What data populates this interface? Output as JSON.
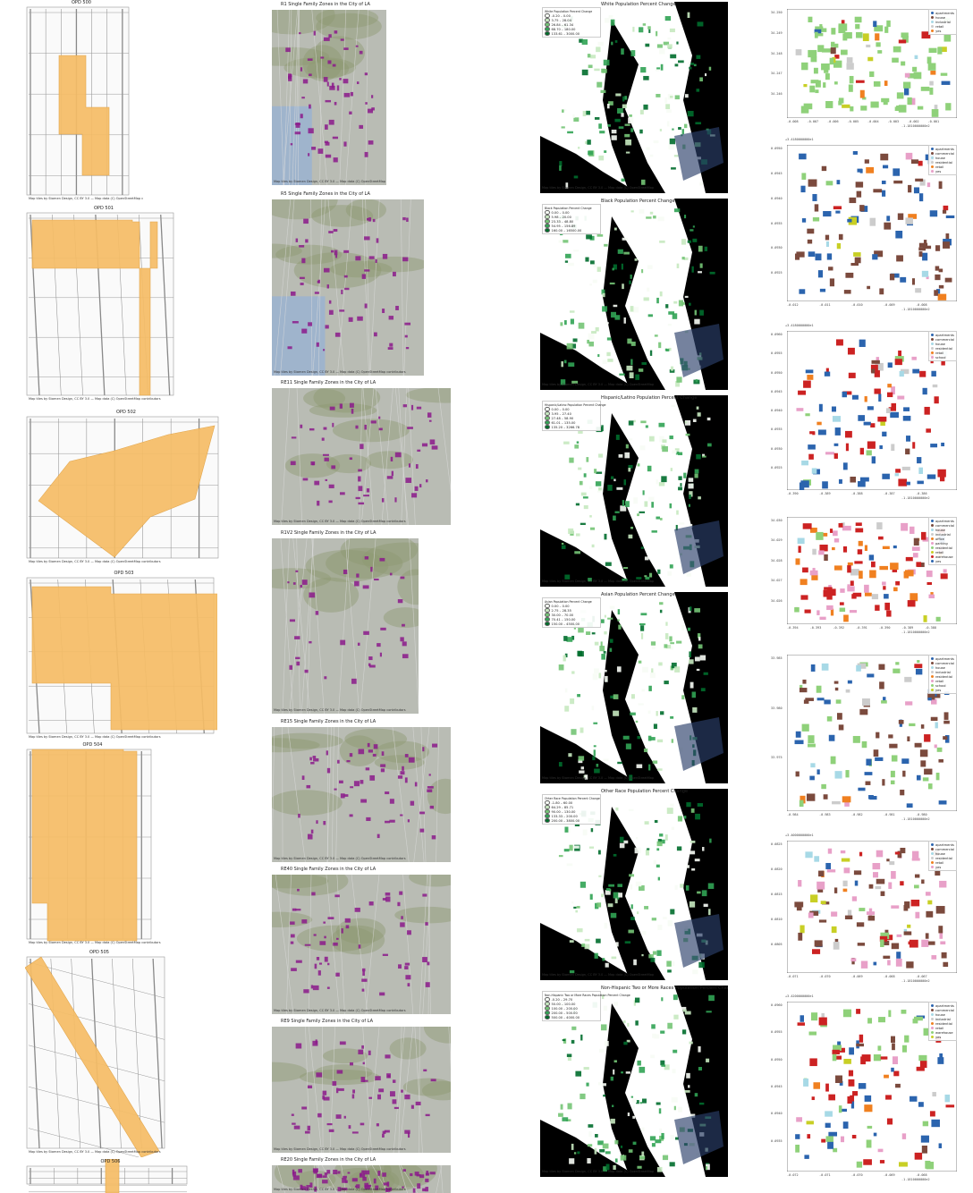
{
  "colors": {
    "zone_orange": "#f6bd66",
    "zone_purple": "#8b1a8b",
    "nyc_land": "#ffffff",
    "nyc_water": "#000000",
    "green_scale": [
      "#f7fcf5",
      "#c7e9c0",
      "#74c476",
      "#31a354",
      "#006d2c"
    ],
    "bldg_apartments": "#2b64ae",
    "bldg_house": "#7b4a3d",
    "bldg_industrial": "#a7d9e6",
    "bldg_retail": "#cccccc",
    "bldg_commercial": "#f08020",
    "bldg_residential": "#e8a0c8",
    "bldg_yes": "#8fd17a",
    "bldg_school": "#c8cf25",
    "bldg_red": "#cc2222"
  },
  "opd": {
    "credit": "Map tiles by Stamen Design, CC BY 3.0 — Map data (C) OpenStreetMap contributors",
    "titles": [
      "OPD 500",
      "OPD 501",
      "OPD 502",
      "OPD 503",
      "OPD 504",
      "OPD 505",
      "OPD 506"
    ]
  },
  "la": {
    "credit": "Map tiles by Stamen Design, CC BY 3.0 — Map data (C) OpenStreetMap contributors",
    "titles": [
      "R1 Single Family Zones in the City of LA",
      "R5 Single Family Zones in the City of LA",
      "RE11 Single Family Zones in the City of LA",
      "R1V2 Single Family Zones in the City of LA",
      "RE15 Single Family Zones in the City of LA",
      "RE40 Single Family Zones in the City of LA",
      "RE9 Single Family Zones in the City of LA",
      "RE20 Single Family Zones in the City of LA"
    ]
  },
  "nyc": {
    "credit": "Map tiles by Stamen Design, CC BY 3.0 — Map data (C) OpenStreetMap",
    "titles": [
      "White Population Percent Change",
      "Black Population Percent Change",
      "Hispanic/Latino Population Percent Change",
      "Asian Population Percent Change",
      "Other Race Population Percent Change",
      "Non-Hispanic Two or More Races Population Percent Change"
    ],
    "legends": [
      {
        "title": "White Population Percent Change",
        "rows": [
          "-0.20 – 0.00",
          "3.75 – 28.04",
          "26.84 – 61.34",
          "68.70 – 180.00",
          "133.61 – 3000.00"
        ]
      },
      {
        "title": "Black Population Percent Change",
        "rows": [
          "0.00 – 0.00",
          "5.98 – 20.00",
          "23.33 – 48.80",
          "54.95 – 156.89",
          "160.00 – 16500.00"
        ]
      },
      {
        "title": "Hispanic/Latino Population Percent Change",
        "rows": [
          "0.00 – 0.00",
          "3.95 – 27.40",
          "27.48 – 58.90",
          "61.01 – 135.00",
          "135.20 – 3266.78"
        ]
      },
      {
        "title": "Asian Population Percent Change",
        "rows": [
          "0.00 – 0.00",
          "2.75 – 28.35",
          "30.00 – 70.00",
          "70.41 – 150.00",
          "150.00 – 4500.00"
        ]
      },
      {
        "title": "Other Race Population Percent Change",
        "rows": [
          "-1.80 – 60.00",
          "64.29 – 85.71",
          "90.00 – 130.00",
          "133.33 – 200.00",
          "200.00 – 3800.00"
        ]
      },
      {
        "title": "Non-Hispanic Two or More Races Population Percent Change",
        "rows": [
          "-0.20 – 29.70",
          "50.00 – 100.00",
          "100.00 – 200.00",
          "200.00 – 500.00",
          "500.00 – 4000.00"
        ]
      }
    ]
  },
  "buildings": {
    "panels": [
      {
        "offset": "",
        "legend": [
          "apartments",
          "house",
          "industrial",
          "retail",
          "yes"
        ],
        "xticks": [
          "-0.008",
          "-0.007",
          "-0.006",
          "-0.005",
          "-0.004",
          "-0.003",
          "-0.002",
          "-0.001"
        ],
        "yticks": [
          "34.250",
          "34.249",
          "34.248",
          "34.247",
          "34.246"
        ],
        "xoff": "-1.1810000000e2"
      },
      {
        "offset": "+3.4180000000e1",
        "legend": [
          "apartments",
          "commercial",
          "house",
          "residential",
          "retail",
          "yes"
        ],
        "xticks": [
          "-0.012",
          "-0.011",
          "-0.010",
          "-0.009",
          "-0.008"
        ],
        "yticks": [
          "0.0950",
          "0.0945",
          "0.0940",
          "0.0935",
          "0.0930",
          "0.0925"
        ],
        "xoff": "-1.1810000000e2"
      },
      {
        "offset": "+3.4180000000e1",
        "legend": [
          "apartments",
          "commercial",
          "house",
          "residential",
          "retail",
          "school"
        ],
        "xticks": [
          "-0.390",
          "-0.389",
          "-0.388",
          "-0.387",
          "-0.386"
        ],
        "yticks": [
          "0.0960",
          "0.0955",
          "0.0950",
          "0.0945",
          "0.0940",
          "0.0935",
          "0.0930",
          "0.0925"
        ],
        "xoff": "-1.1810000000e2"
      },
      {
        "offset": "",
        "legend": [
          "apartments",
          "commercial",
          "house",
          "industrial",
          "office",
          "parking",
          "residential",
          "retail",
          "warehouse",
          "yes"
        ],
        "xticks": [
          "-0.394",
          "-0.393",
          "-0.392",
          "-0.391",
          "-0.390",
          "-0.389",
          "-0.388"
        ],
        "yticks": [
          "34.030",
          "34.029",
          "34.028",
          "34.027",
          "34.026"
        ],
        "xoff": "-1.1810000000e2"
      },
      {
        "offset": "",
        "legend": [
          "apartments",
          "commercial",
          "house",
          "industrial",
          "residential",
          "retail",
          "school",
          "yes"
        ],
        "xticks": [
          "-0.984",
          "-0.983",
          "-0.982",
          "-0.981",
          "-0.980"
        ],
        "yticks": [
          "33.985",
          "33.980",
          "33.975"
        ],
        "xoff": "-1.1810000000e2"
      },
      {
        "offset": "+3.4000000000e1",
        "legend": [
          "apartments",
          "commercial",
          "house",
          "residential",
          "retail",
          "yes"
        ],
        "xticks": [
          "-0.071",
          "-0.070",
          "-0.069",
          "-0.068",
          "-0.067"
        ],
        "yticks": [
          "0.0825",
          "0.0820",
          "0.0815",
          "0.0810",
          "0.0805"
        ],
        "xoff": "-1.1810000000e2"
      },
      {
        "offset": "+3.4200000000e1",
        "legend": [
          "apartments",
          "commercial",
          "house",
          "industrial",
          "residential",
          "retail",
          "warehouse",
          "yes"
        ],
        "xticks": [
          "-0.072",
          "-0.071",
          "-0.070",
          "-0.069",
          "-0.068"
        ],
        "yticks": [
          "0.0960",
          "0.0955",
          "0.0950",
          "0.0945",
          "0.0940",
          "0.0935"
        ],
        "xoff": "-1.1810000000e2"
      }
    ]
  }
}
